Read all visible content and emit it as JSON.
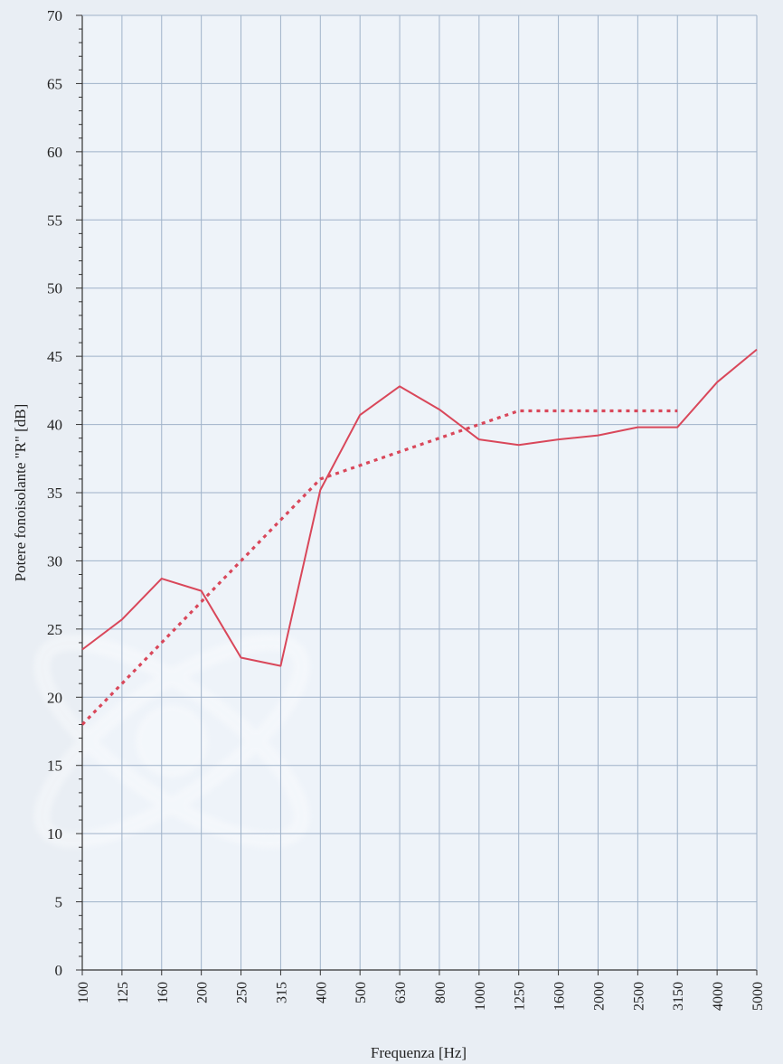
{
  "chart_data": {
    "type": "line",
    "title": "",
    "xlabel": "Frequenza [Hz]",
    "ylabel": "Potere fonoisolante \"R\" [dB]",
    "ylim": [
      0,
      70
    ],
    "y_ticks": [
      "0",
      "5",
      "10",
      "15",
      "20",
      "25",
      "30",
      "35",
      "40",
      "45",
      "50",
      "55",
      "60",
      "65",
      "70"
    ],
    "categories": [
      "100",
      "125",
      "160",
      "200",
      "250",
      "315",
      "400",
      "500",
      "630",
      "800",
      "1000",
      "1250",
      "1600",
      "2000",
      "2500",
      "3150",
      "4000",
      "5000"
    ],
    "grid": true,
    "legend": "none",
    "series": [
      {
        "style": "solid",
        "color": "#d9475a",
        "values": [
          23.5,
          25.7,
          28.7,
          27.8,
          22.9,
          22.3,
          35.2,
          40.7,
          42.8,
          41.1,
          38.9,
          38.5,
          38.9,
          39.2,
          39.8,
          39.8,
          43.1,
          45.5
        ]
      },
      {
        "style": "dotted",
        "color": "#d9475a",
        "values": [
          18.0,
          21.0,
          24.0,
          27.0,
          30.0,
          33.0,
          36.0,
          37.0,
          38.0,
          39.0,
          40.0,
          41.0,
          41.0,
          41.0,
          41.0,
          41.0,
          null,
          null
        ]
      }
    ]
  }
}
